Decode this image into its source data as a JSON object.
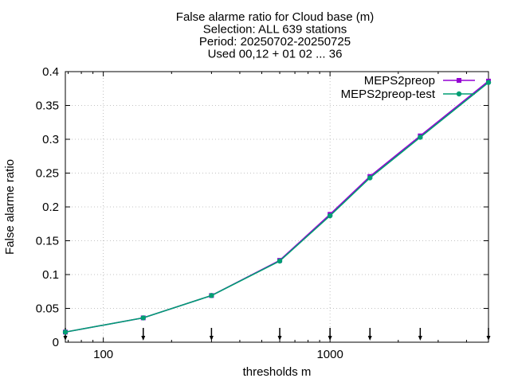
{
  "chart_data": {
    "type": "line",
    "title_lines": [
      "False alarme ratio  for Cloud base (m)",
      "Selection: ALL    639 stations",
      "Period: 20250702-20250725",
      "Used 00,12 + 01 02 ... 36"
    ],
    "xlabel": "thresholds m",
    "ylabel": "False alarme ratio",
    "x_scale": "log",
    "xlim": [
      68,
      5000
    ],
    "ylim": [
      0,
      0.4
    ],
    "x_ticks": [
      {
        "value": 100,
        "label": "100"
      },
      {
        "value": 1000,
        "label": "1000"
      }
    ],
    "y_ticks": [
      {
        "value": 0,
        "label": "0"
      },
      {
        "value": 0.05,
        "label": "0.05"
      },
      {
        "value": 0.1,
        "label": "0.1"
      },
      {
        "value": 0.15,
        "label": "0.15"
      },
      {
        "value": 0.2,
        "label": "0.2"
      },
      {
        "value": 0.25,
        "label": "0.25"
      },
      {
        "value": 0.3,
        "label": "0.3"
      },
      {
        "value": 0.35,
        "label": "0.35"
      },
      {
        "value": 0.4,
        "label": "0.4"
      }
    ],
    "grid": true,
    "legend_position": "top-right",
    "x": [
      68,
      150,
      300,
      600,
      1000,
      1500,
      2500,
      5000
    ],
    "series": [
      {
        "name": "MEPS2preop",
        "color": "#9400d3",
        "values": [
          0.015,
          0.036,
          0.069,
          0.121,
          0.189,
          0.245,
          0.305,
          0.386
        ]
      },
      {
        "name": "MEPS2preop-test",
        "color": "#009e73",
        "values": [
          0.015,
          0.036,
          0.069,
          0.12,
          0.187,
          0.243,
          0.303,
          0.384
        ]
      }
    ],
    "threshold_markers": [
      68,
      150,
      300,
      600,
      1000,
      1500,
      2500,
      5000
    ],
    "marker_color": "#000000"
  }
}
